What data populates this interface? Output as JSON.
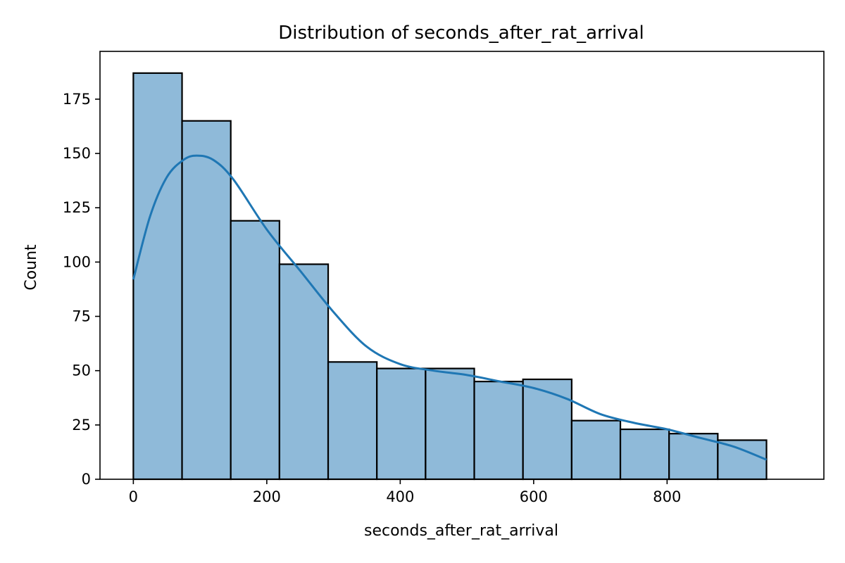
{
  "chart_data": {
    "type": "bar",
    "subtype": "histogram",
    "title": "Distribution of seconds_after_rat_arrival",
    "xlabel": "seconds_after_rat_arrival",
    "ylabel": "Count",
    "bin_edges": [
      0,
      73,
      146,
      219,
      292,
      365,
      438,
      511,
      584,
      657,
      730,
      803,
      876,
      949
    ],
    "counts": [
      187,
      165,
      119,
      99,
      54,
      51,
      51,
      45,
      46,
      27,
      23,
      21,
      18
    ],
    "kde": {
      "x": [
        0,
        25,
        50,
        75,
        95,
        120,
        150,
        200,
        250,
        300,
        350,
        400,
        450,
        500,
        550,
        600,
        650,
        700,
        750,
        800,
        850,
        900,
        949
      ],
      "y": [
        92,
        121,
        139,
        147,
        149,
        147,
        138,
        115,
        96,
        77,
        61,
        53,
        50,
        48,
        45,
        42,
        37,
        30,
        26,
        23,
        19,
        15,
        9
      ]
    },
    "xlim": [
      -50,
      1035
    ],
    "ylim": [
      0,
      197
    ],
    "xticks": [
      0,
      200,
      400,
      600,
      800
    ],
    "yticks": [
      0,
      25,
      50,
      75,
      100,
      125,
      150,
      175
    ],
    "grid": false,
    "colors": {
      "bar_fill": "#8fbad9",
      "bar_edge": "#000000",
      "kde_line": "#1f77b4"
    }
  }
}
